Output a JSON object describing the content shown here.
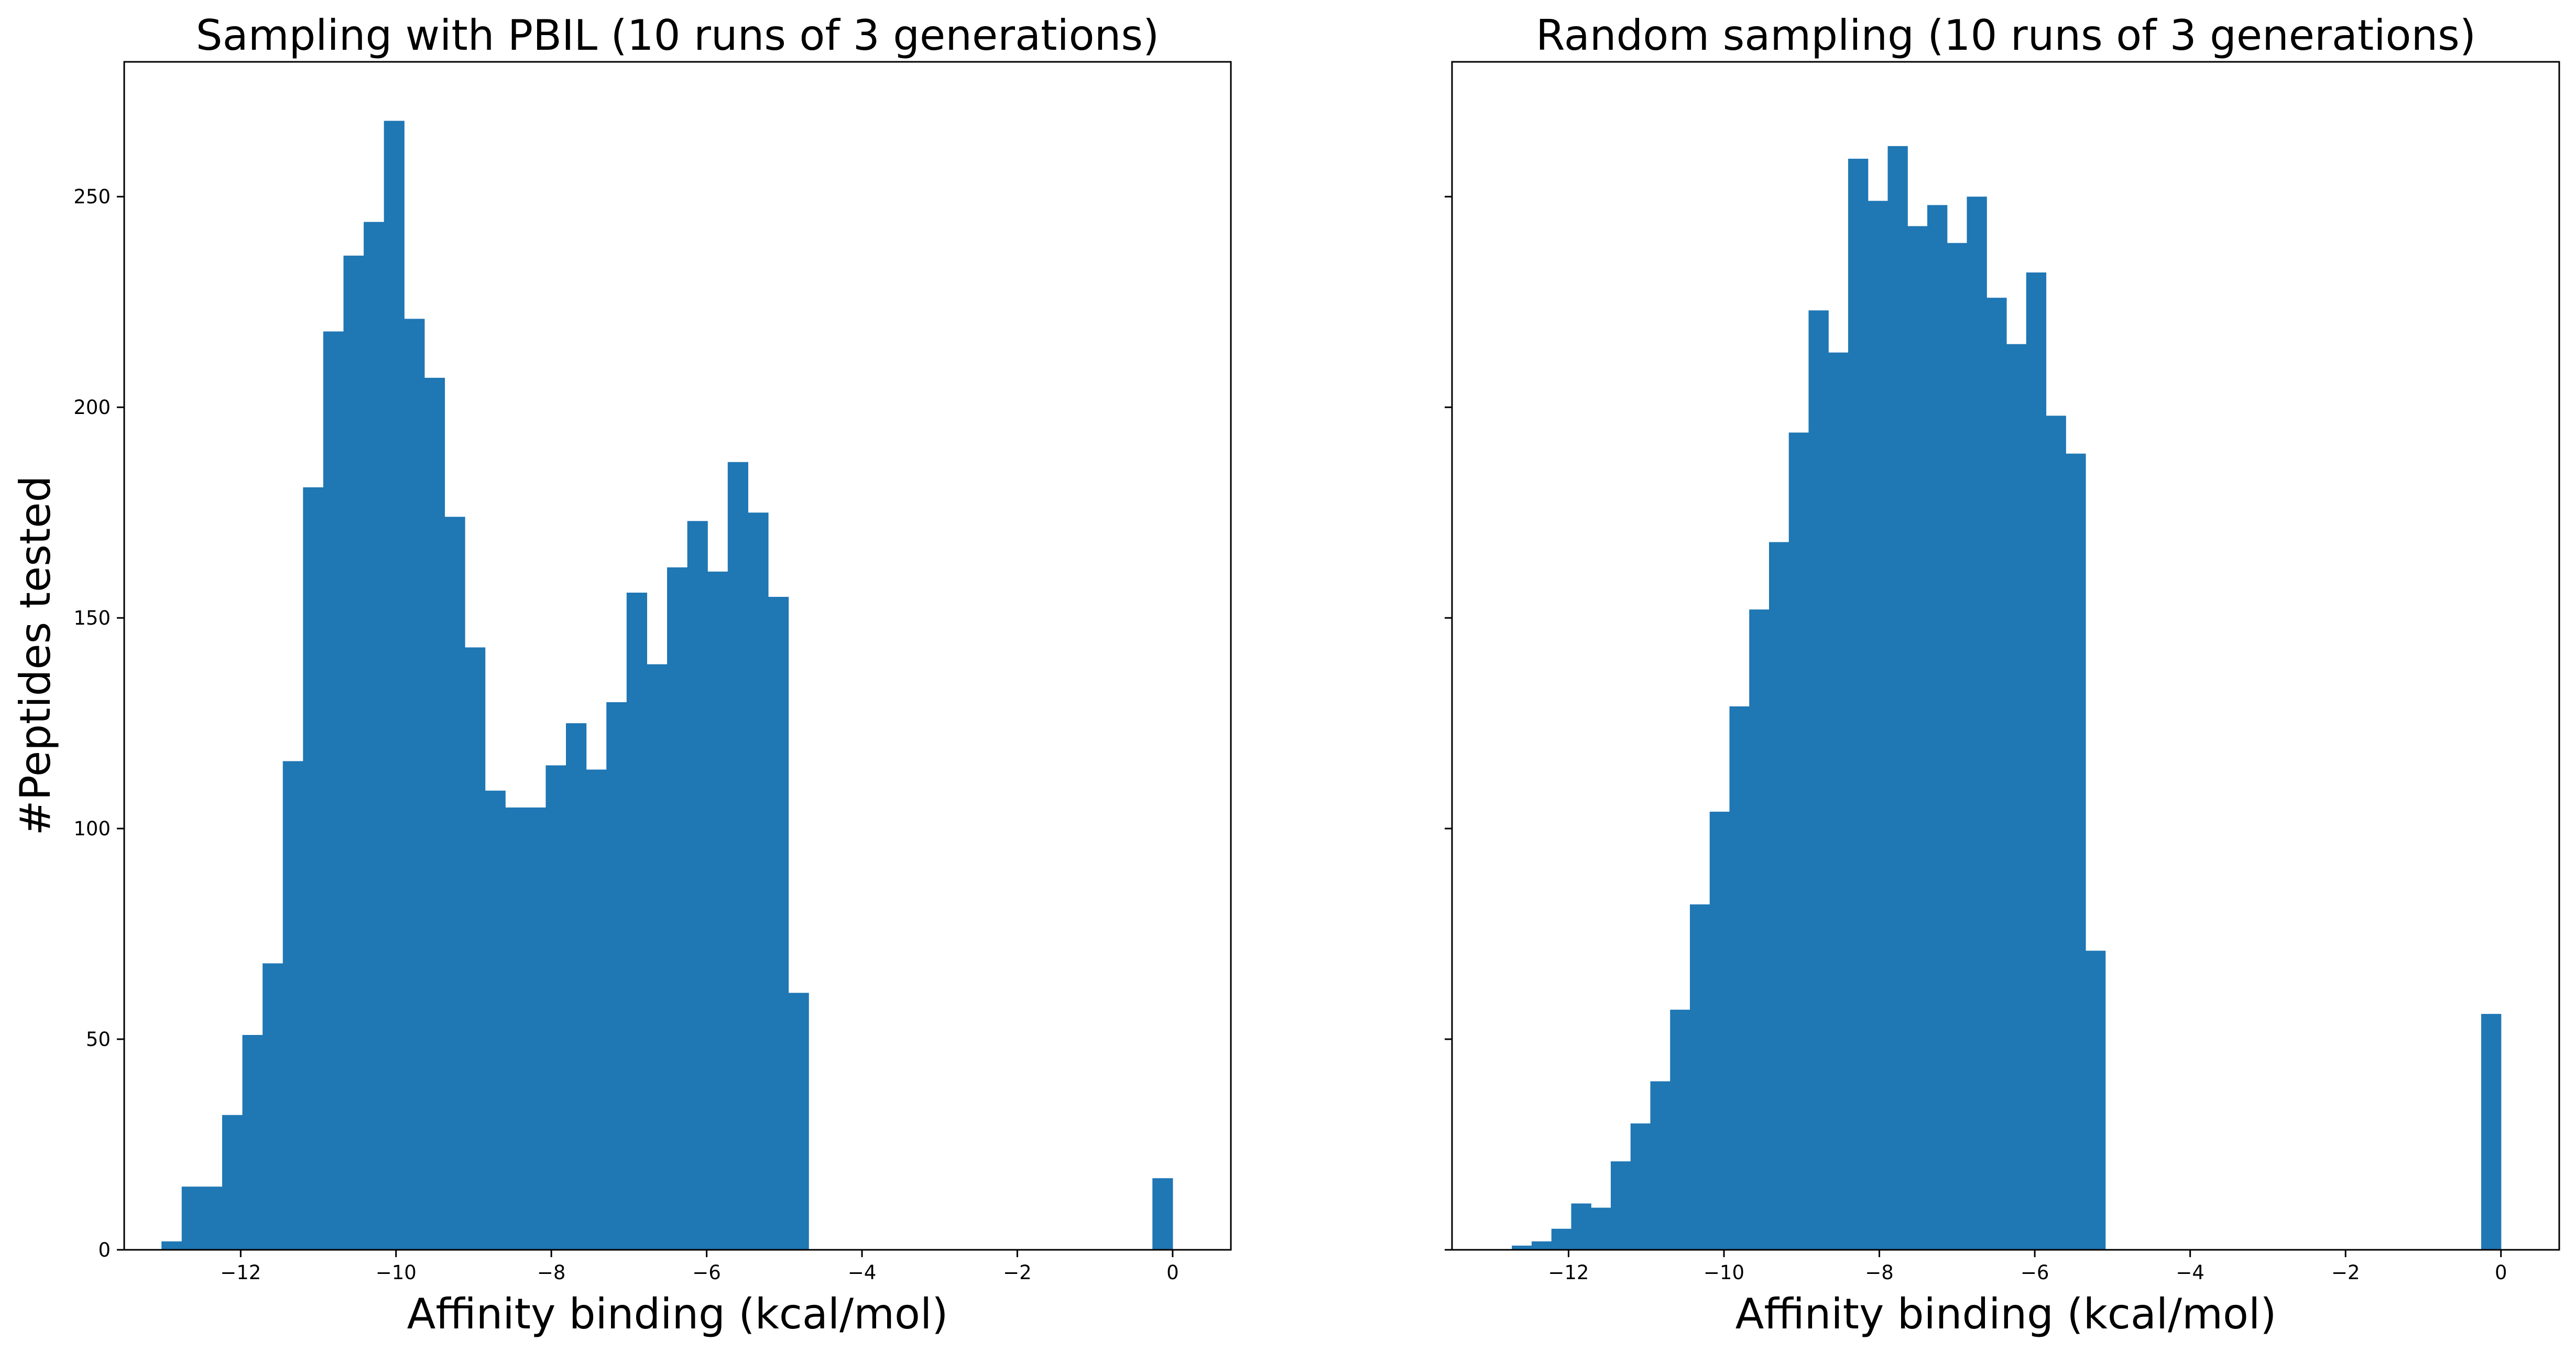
{
  "chart_data": [
    {
      "type": "bar",
      "title": "Sampling with PBIL (10 runs of 3 generations)",
      "xlabel": "Affinity binding (kcal/mol)",
      "ylabel": "#Peptides tested",
      "xlim": [
        -13.5,
        0.75
      ],
      "ylim": [
        0,
        282
      ],
      "xticks": [
        -12,
        -10,
        -8,
        -6,
        -4,
        -2,
        0
      ],
      "xtick_labels": [
        "−12",
        "−10",
        "−8",
        "−6",
        "−4",
        "−2",
        "0"
      ],
      "yticks": [
        0,
        50,
        100,
        150,
        200,
        250
      ],
      "ytick_labels": [
        "0",
        "50",
        "100",
        "150",
        "200",
        "250"
      ],
      "bin_start": -13.02,
      "bin_width": 0.2604,
      "values": [
        2,
        15,
        15,
        32,
        51,
        68,
        116,
        181,
        218,
        236,
        244,
        268,
        221,
        207,
        174,
        143,
        109,
        105,
        105,
        115,
        125,
        114,
        130,
        156,
        139,
        162,
        173,
        161,
        187,
        175,
        155,
        61,
        0,
        0,
        0,
        0,
        0,
        0,
        0,
        0,
        0,
        0,
        0,
        0,
        0,
        0,
        0,
        0,
        0,
        17
      ],
      "color": "#1f77b4"
    },
    {
      "type": "bar",
      "title": "Random sampling (10 runs of 3 generations)",
      "xlabel": "Affinity binding (kcal/mol)",
      "xlim": [
        -13.5,
        0.75
      ],
      "ylim": [
        0,
        282
      ],
      "xticks": [
        -12,
        -10,
        -8,
        -6,
        -4,
        -2,
        0
      ],
      "xtick_labels": [
        "−12",
        "−10",
        "−8",
        "−6",
        "−4",
        "−2",
        "0"
      ],
      "yticks": [
        0,
        50,
        100,
        150,
        200,
        250
      ],
      "bin_start": -12.73,
      "bin_width": 0.2546,
      "values": [
        1,
        2,
        5,
        11,
        10,
        21,
        30,
        40,
        57,
        82,
        104,
        129,
        152,
        168,
        194,
        223,
        213,
        259,
        249,
        262,
        243,
        248,
        239,
        250,
        226,
        215,
        232,
        198,
        189,
        71,
        0,
        0,
        0,
        0,
        0,
        0,
        0,
        0,
        0,
        0,
        0,
        0,
        0,
        0,
        0,
        0,
        0,
        0,
        0,
        56
      ],
      "color": "#1f77b4"
    }
  ]
}
